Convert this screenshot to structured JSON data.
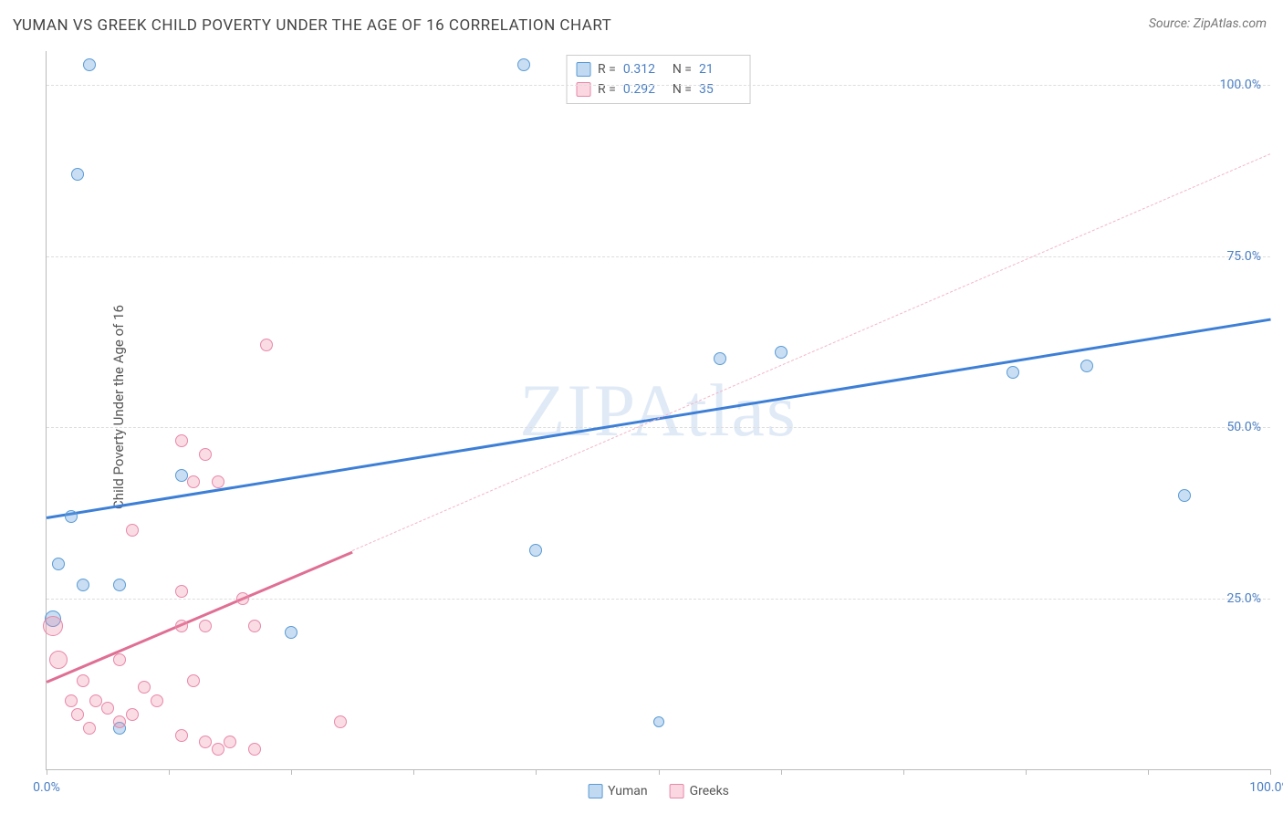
{
  "title": "YUMAN VS GREEK CHILD POVERTY UNDER THE AGE OF 16 CORRELATION CHART",
  "source_label": "Source: ",
  "source_name": "ZipAtlas.com",
  "watermark": "ZIPAtlas",
  "ylabel": "Child Poverty Under the Age of 16",
  "chart": {
    "type": "scatter",
    "xlim": [
      0,
      100
    ],
    "ylim": [
      0,
      105
    ],
    "x_tick_positions": [
      0,
      10,
      20,
      30,
      40,
      50,
      60,
      70,
      80,
      90,
      100
    ],
    "x_tick_labels_shown": {
      "0": "0.0%",
      "100": "100.0%"
    },
    "y_grid_positions": [
      25,
      50,
      75,
      100
    ],
    "y_tick_labels": {
      "25": "25.0%",
      "50": "50.0%",
      "75": "75.0%",
      "100": "100.0%"
    },
    "background_color": "#ffffff",
    "grid_color": "#dddddd",
    "axis_color": "#bbbbbb",
    "tick_label_color": "#4a7fc4",
    "series": [
      {
        "name": "Yuman",
        "color_fill": "rgba(100,160,220,0.35)",
        "color_stroke": "#5a9bd5",
        "marker_base_size": 14,
        "R": "0.312",
        "N": "21",
        "regression": {
          "x1": 0,
          "y1": 37,
          "x2": 100,
          "y2": 66,
          "color": "#3d7fd6",
          "width": 2.5,
          "dashed_extension": false
        },
        "points": [
          {
            "x": 3.5,
            "y": 103,
            "size": 14
          },
          {
            "x": 39,
            "y": 103,
            "size": 14
          },
          {
            "x": 2.5,
            "y": 87,
            "size": 14
          },
          {
            "x": 55,
            "y": 60,
            "size": 14
          },
          {
            "x": 60,
            "y": 61,
            "size": 14
          },
          {
            "x": 79,
            "y": 58,
            "size": 14
          },
          {
            "x": 85,
            "y": 59,
            "size": 14
          },
          {
            "x": 93,
            "y": 40,
            "size": 14
          },
          {
            "x": 11,
            "y": 43,
            "size": 14
          },
          {
            "x": 2,
            "y": 37,
            "size": 14
          },
          {
            "x": 40,
            "y": 32,
            "size": 14
          },
          {
            "x": 1,
            "y": 30,
            "size": 14
          },
          {
            "x": 3,
            "y": 27,
            "size": 14
          },
          {
            "x": 6,
            "y": 27,
            "size": 14
          },
          {
            "x": 0.5,
            "y": 22,
            "size": 18
          },
          {
            "x": 20,
            "y": 20,
            "size": 14
          },
          {
            "x": 6,
            "y": 6,
            "size": 14
          },
          {
            "x": 50,
            "y": 7,
            "size": 12
          }
        ]
      },
      {
        "name": "Greeks",
        "color_fill": "rgba(240,140,170,0.3)",
        "color_stroke": "#e888a8",
        "marker_base_size": 14,
        "R": "0.292",
        "N": "35",
        "regression": {
          "x1": 0,
          "y1": 13,
          "x2": 25,
          "y2": 32,
          "color": "#e06f94",
          "width": 2.5,
          "dashed_extension": true,
          "dashed_x2": 100,
          "dashed_y2": 90
        },
        "points": [
          {
            "x": 18,
            "y": 62,
            "size": 14
          },
          {
            "x": 11,
            "y": 48,
            "size": 14
          },
          {
            "x": 13,
            "y": 46,
            "size": 14
          },
          {
            "x": 14,
            "y": 42,
            "size": 14
          },
          {
            "x": 12,
            "y": 42,
            "size": 14
          },
          {
            "x": 7,
            "y": 35,
            "size": 14
          },
          {
            "x": 11,
            "y": 26,
            "size": 14
          },
          {
            "x": 16,
            "y": 25,
            "size": 14
          },
          {
            "x": 11,
            "y": 21,
            "size": 14
          },
          {
            "x": 13,
            "y": 21,
            "size": 14
          },
          {
            "x": 17,
            "y": 21,
            "size": 14
          },
          {
            "x": 0.5,
            "y": 21,
            "size": 22
          },
          {
            "x": 6,
            "y": 16,
            "size": 14
          },
          {
            "x": 1,
            "y": 16,
            "size": 20
          },
          {
            "x": 3,
            "y": 13,
            "size": 14
          },
          {
            "x": 8,
            "y": 12,
            "size": 14
          },
          {
            "x": 12,
            "y": 13,
            "size": 14
          },
          {
            "x": 2,
            "y": 10,
            "size": 14
          },
          {
            "x": 4,
            "y": 10,
            "size": 14
          },
          {
            "x": 5,
            "y": 9,
            "size": 14
          },
          {
            "x": 2.5,
            "y": 8,
            "size": 14
          },
          {
            "x": 7,
            "y": 8,
            "size": 14
          },
          {
            "x": 9,
            "y": 10,
            "size": 14
          },
          {
            "x": 6,
            "y": 7,
            "size": 14
          },
          {
            "x": 3.5,
            "y": 6,
            "size": 14
          },
          {
            "x": 11,
            "y": 5,
            "size": 14
          },
          {
            "x": 13,
            "y": 4,
            "size": 14
          },
          {
            "x": 14,
            "y": 3,
            "size": 14
          },
          {
            "x": 15,
            "y": 4,
            "size": 14
          },
          {
            "x": 17,
            "y": 3,
            "size": 14
          },
          {
            "x": 24,
            "y": 7,
            "size": 14
          }
        ]
      }
    ]
  },
  "legend_top": {
    "rows": [
      {
        "swatch": "blue",
        "R_label": "R  =",
        "R_value": "0.312",
        "N_label": "N  =",
        "N_value": "21"
      },
      {
        "swatch": "pink",
        "R_label": "R  =",
        "R_value": "0.292",
        "N_label": "N  =",
        "N_value": "35"
      }
    ]
  },
  "legend_bottom": {
    "items": [
      {
        "swatch": "blue",
        "label": "Yuman"
      },
      {
        "swatch": "pink",
        "label": "Greeks"
      }
    ]
  }
}
